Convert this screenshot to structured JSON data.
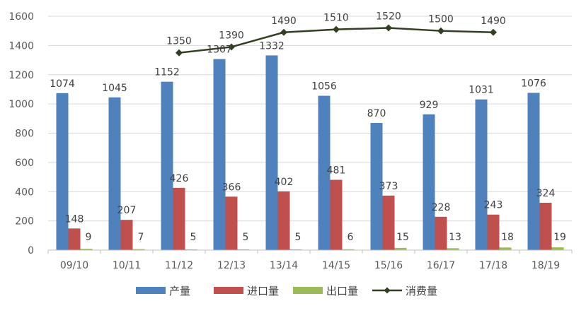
{
  "chart_data": {
    "type": "bar",
    "categories": [
      "09/10",
      "10/11",
      "11/12",
      "12/13",
      "13/14",
      "14/15",
      "15/16",
      "16/17",
      "17/18",
      "18/19"
    ],
    "ylim": [
      0,
      1600
    ],
    "yticks": [
      0,
      200,
      400,
      600,
      800,
      1000,
      1200,
      1400,
      1600
    ],
    "grid": true,
    "legend_position": "bottom",
    "series": [
      {
        "name": "产量",
        "kind": "bar",
        "color": "#4f81bd",
        "values": [
          1074,
          1045,
          1152,
          1307,
          1332,
          1056,
          870,
          929,
          1031,
          1076
        ]
      },
      {
        "name": "进口量",
        "kind": "bar",
        "color": "#c0504d",
        "values": [
          148,
          207,
          426,
          366,
          402,
          481,
          373,
          228,
          243,
          324
        ]
      },
      {
        "name": "出口量",
        "kind": "bar",
        "color": "#9bbb59",
        "values": [
          9,
          7,
          5,
          5,
          5,
          6,
          15,
          13,
          18,
          19
        ]
      },
      {
        "name": "消费量",
        "kind": "line",
        "color": "#333f22",
        "marker": "diamond",
        "values": [
          null,
          null,
          1350,
          1390,
          1490,
          1510,
          1520,
          1500,
          1490,
          null
        ]
      }
    ]
  }
}
